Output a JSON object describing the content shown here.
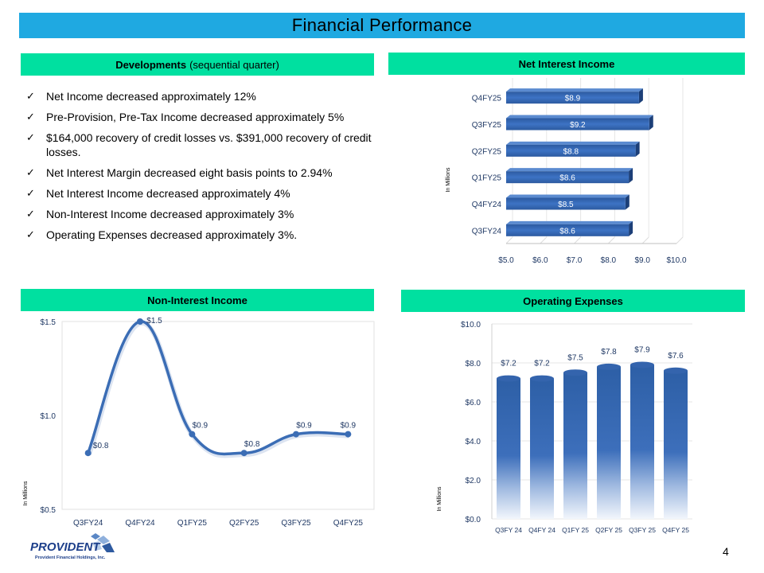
{
  "title": "Financial Performance",
  "developments": {
    "header_bold": "Developments",
    "header_normal": "(sequential quarter)",
    "items": [
      "Net Income decreased approximately 12%",
      "Pre-Provision, Pre-Tax Income decreased approximately 5%",
      "$164,000 recovery of credit losses vs. $391,000 recovery of credit losses.",
      "Net Interest Margin decreased eight basis points to 2.94%",
      "Net Interest Income decreased approximately 4%",
      "Non-Interest Income decreased approximately 3%",
      "Operating Expenses decreased approximately 3%."
    ]
  },
  "chart_data": [
    {
      "type": "bar",
      "orientation": "horizontal",
      "title": "Net Interest Income",
      "ylabel": "In Millions",
      "categories": [
        "Q3FY24",
        "Q4FY24",
        "Q1FY25",
        "Q2FY25",
        "Q3FY25",
        "Q4FY25"
      ],
      "values": [
        8.6,
        8.5,
        8.6,
        8.8,
        9.2,
        8.9
      ],
      "labels": [
        "$8.6",
        "$8.5",
        "$8.6",
        "$8.8",
        "$9.2",
        "$8.9"
      ],
      "xlim": [
        5.0,
        10.0
      ],
      "ticks": [
        5,
        6,
        7,
        8,
        9,
        10
      ],
      "tick_labels": [
        "$5.0",
        "$6.0",
        "$7.0",
        "$8.0",
        "$9.0",
        "$10.0"
      ],
      "color": "#2d5fa6"
    },
    {
      "type": "line",
      "title": "Non-Interest Income",
      "ylabel": "In Millions",
      "categories": [
        "Q3FY24",
        "Q4FY24",
        "Q1FY25",
        "Q2FY25",
        "Q3FY25",
        "Q4FY25"
      ],
      "values": [
        0.8,
        1.5,
        0.9,
        0.8,
        0.9,
        0.9
      ],
      "labels": [
        "$0.8",
        "$1.5",
        "$0.9",
        "$0.8",
        "$0.9",
        "$0.9"
      ],
      "ylim": [
        0.5,
        1.5
      ],
      "ticks": [
        0.5,
        1.0,
        1.5
      ],
      "tick_labels": [
        "$0.5",
        "$1.0",
        "$1.5"
      ],
      "color": "#3b6db5"
    },
    {
      "type": "bar",
      "orientation": "vertical",
      "title": "Operating Expenses",
      "ylabel": "In Millions",
      "categories": [
        "Q3FY24",
        "Q4FY24",
        "Q1FY25",
        "Q2FY25",
        "Q3FY25",
        "Q4FY25"
      ],
      "tick_categories": [
        "Q3FY 24",
        "Q4FY 24",
        "Q1FY 25",
        "Q2FY 25",
        "Q3FY 25",
        "Q4FY 25"
      ],
      "values": [
        7.2,
        7.2,
        7.5,
        7.8,
        7.9,
        7.6
      ],
      "labels": [
        "$7.2",
        "$7.2",
        "$7.5",
        "$7.8",
        "$7.9",
        "$7.6"
      ],
      "ylim": [
        0,
        10
      ],
      "ticks": [
        0,
        2,
        4,
        6,
        8,
        10
      ],
      "tick_labels": [
        "$0.0",
        "$2.0",
        "$4.0",
        "$6.0",
        "$8.0",
        "$10.0"
      ],
      "color": "#2d5fa6"
    }
  ],
  "footer": {
    "logo_text": "PROVIDENT",
    "logo_subtext": "Provident Financial Holdings, Inc.",
    "page_number": "4"
  }
}
